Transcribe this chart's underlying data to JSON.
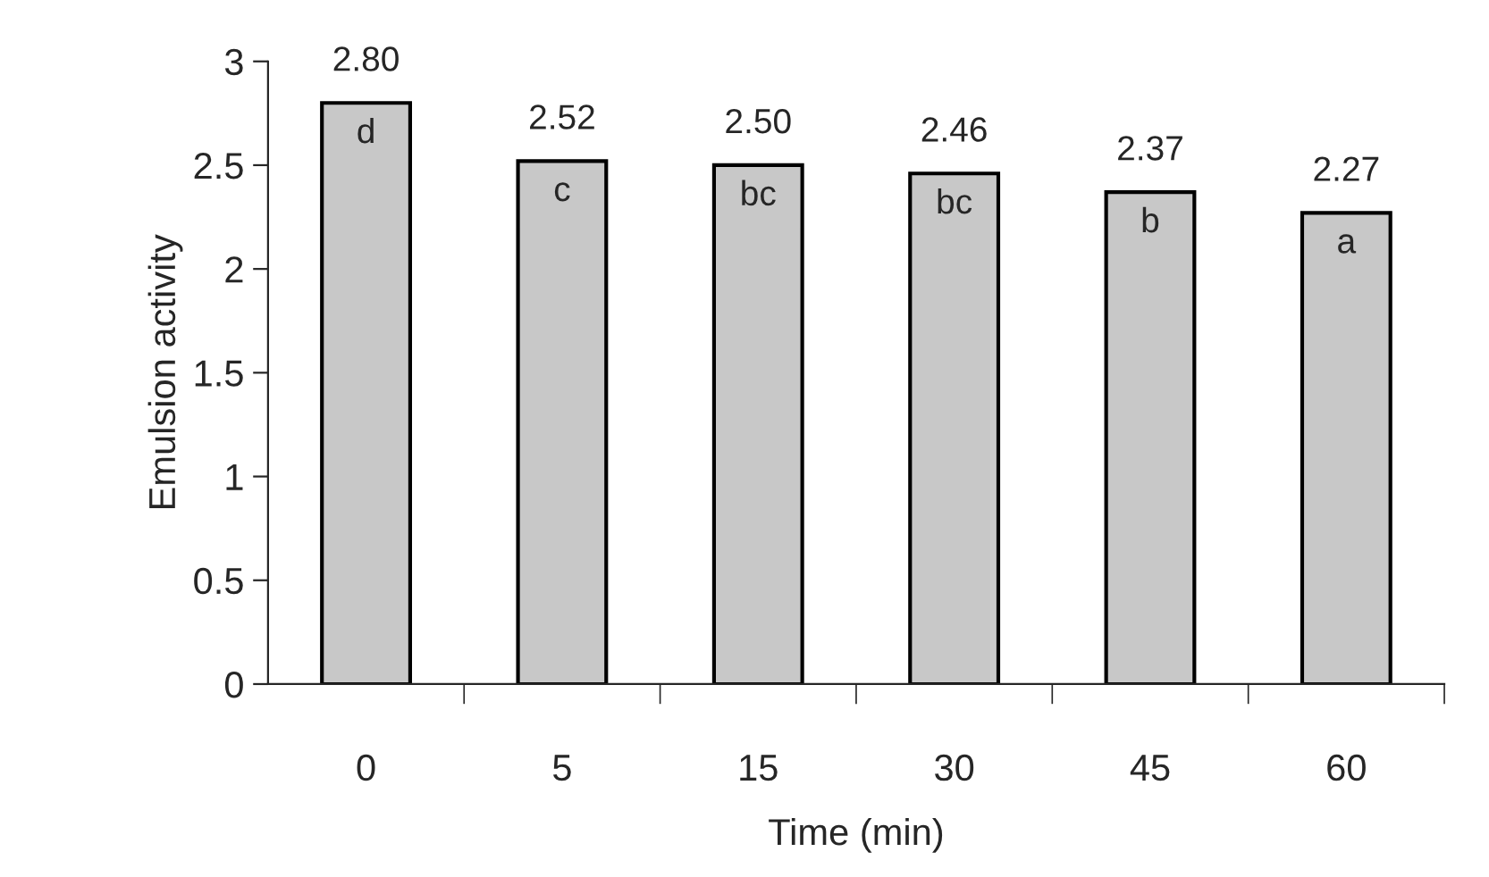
{
  "chart_data": {
    "type": "bar",
    "xlabel": "Time (min)",
    "ylabel": "Emulsion activity",
    "categories": [
      "0",
      "5",
      "15",
      "30",
      "45",
      "60"
    ],
    "values": [
      2.8,
      2.52,
      2.5,
      2.46,
      2.37,
      2.27
    ],
    "value_labels": [
      "2.80",
      "2.52",
      "2.50",
      "2.46",
      "2.37",
      "2.27"
    ],
    "color": "#c8c8c8",
    "ylim": [
      0,
      3
    ],
    "yticks": [
      0,
      0.5,
      1,
      1.5,
      2,
      2.5,
      3
    ],
    "annotations": [
      {
        "text": "d",
        "x": "0",
        "y": 2.8
      },
      {
        "text": "c",
        "x": "5",
        "y": 2.52
      },
      {
        "text": "bc",
        "x": "15",
        "y": 2.5
      },
      {
        "text": "bc",
        "x": "30",
        "y": 2.46
      },
      {
        "text": "b",
        "x": "45",
        "y": 2.37
      },
      {
        "text": "a",
        "x": "60",
        "y": 2.27
      }
    ],
    "grid": false,
    "legend": false
  }
}
